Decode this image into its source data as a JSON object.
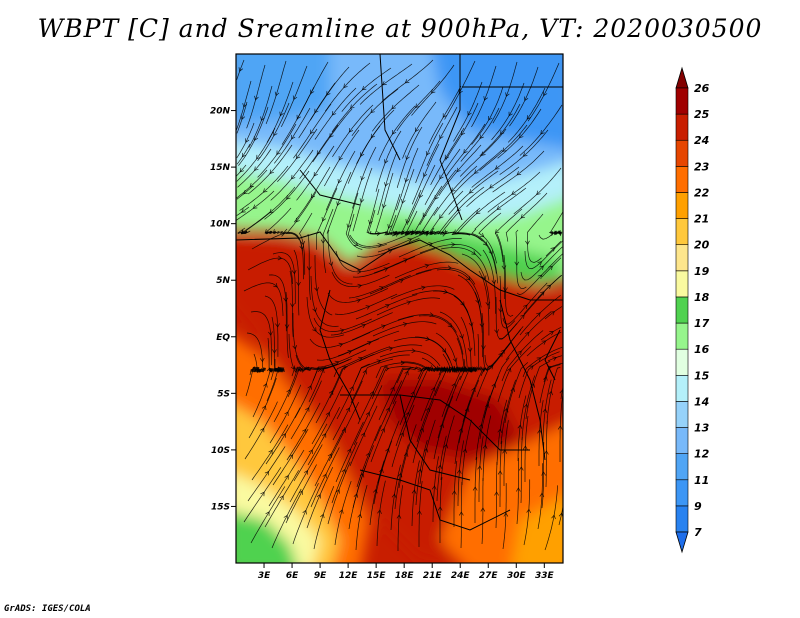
{
  "title": "WBPT [C] and Sreamline at 900hPa, VT: 2020030500",
  "credit": "GrADS: IGES/COLA",
  "chart_data": {
    "type": "heatmap",
    "title": "WBPT [C] and Sreamline at 900hPa, VT: 2020030500",
    "variable": "WBPT [C]",
    "overlay": "streamlines",
    "level": "900hPa",
    "valid_time": "2020030500",
    "xlim": [
      0,
      35
    ],
    "ylim": [
      -20,
      25
    ],
    "x_ticks": [
      3,
      6,
      9,
      12,
      15,
      18,
      21,
      24,
      27,
      30,
      33
    ],
    "x_tick_labels": [
      "3E",
      "6E",
      "9E",
      "12E",
      "15E",
      "18E",
      "21E",
      "24E",
      "27E",
      "30E",
      "33E"
    ],
    "y_ticks": [
      20,
      15,
      10,
      5,
      0,
      -5,
      -10,
      -15
    ],
    "y_tick_labels": [
      "20N",
      "15N",
      "10N",
      "5N",
      "EQ",
      "5S",
      "10S",
      "15S"
    ],
    "colorbar": {
      "levels": [
        7,
        9,
        11,
        12,
        13,
        14,
        15,
        16,
        17,
        18,
        19,
        20,
        21,
        22,
        23,
        24,
        25,
        26
      ],
      "labels": [
        "7",
        "9",
        "11",
        "12",
        "13",
        "14",
        "15",
        "16",
        "17",
        "18",
        "19",
        "20",
        "21",
        "22",
        "23",
        "24",
        "25",
        "26"
      ],
      "colors": [
        "#1e6eeb",
        "#2882f0",
        "#3c96f5",
        "#50a5f5",
        "#78b9fa",
        "#96d2fa",
        "#b4f0fa",
        "#e1ffe1",
        "#96f58c",
        "#50d250",
        "#fafaa0",
        "#fee68c",
        "#ffc83c",
        "#ffa000",
        "#ff6e00",
        "#e64600",
        "#c81e00",
        "#a00000",
        "#820000"
      ],
      "extend": "both"
    },
    "fields_note_colors": {
      "north_cool": "#78b9fa",
      "sahel_green": "#96f58c",
      "tropics_hot": "#c81e00",
      "south_warm": "#ffa000"
    }
  }
}
